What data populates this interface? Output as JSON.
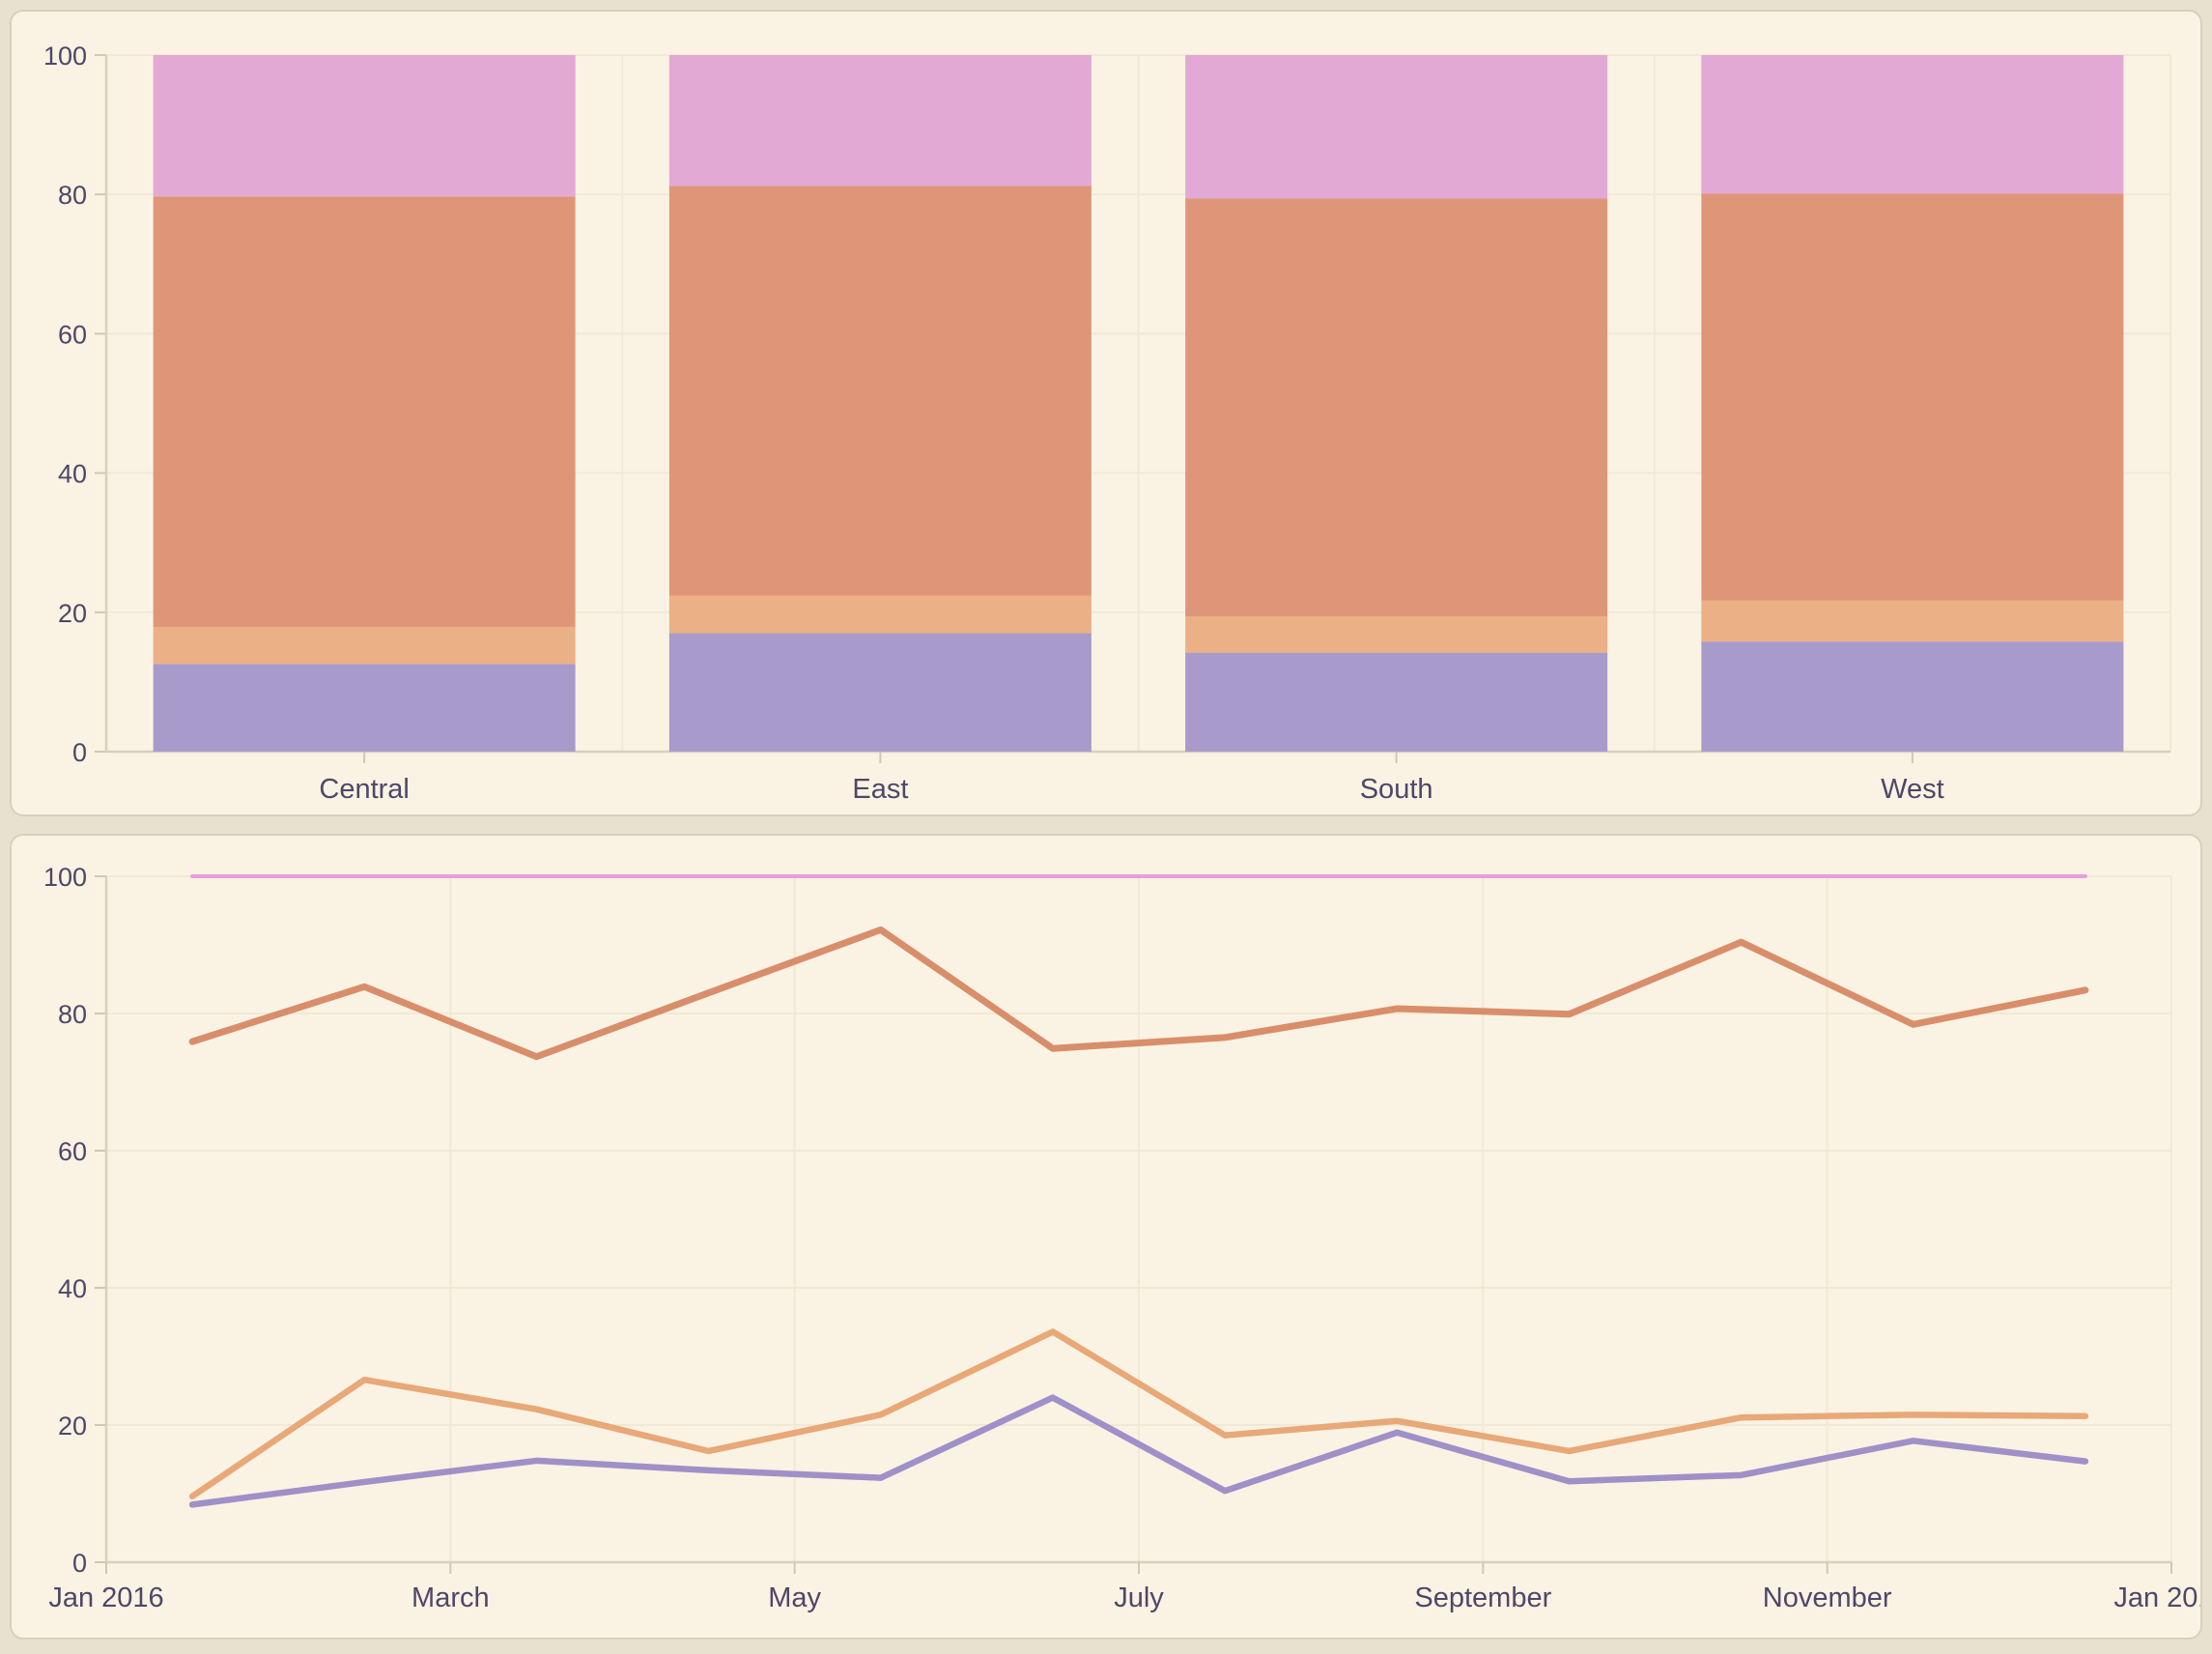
{
  "page": {
    "background_color": "#e9e1d0",
    "card_background_color": "#faf3e3",
    "card_border_color": "#d9d0ba",
    "text_color": "#4e4769",
    "grid_color": "#f1e9d7",
    "axis_color": "#d8d0bb",
    "tick_color": "#cfc8b4"
  },
  "chart_data": [
    {
      "type": "bar",
      "stacked": true,
      "stack_total": 100,
      "title": "",
      "xlabel": "",
      "ylabel": "",
      "legend": "none",
      "grid": "on",
      "ylim": [
        0,
        100
      ],
      "y_ticks": [
        "0",
        "20",
        "40",
        "60",
        "80",
        "100"
      ],
      "y_tick_values": [
        0,
        20,
        40,
        60,
        80,
        100
      ],
      "categories": [
        "Central",
        "East",
        "South",
        "West"
      ],
      "series": [
        {
          "name": "segment-purple",
          "color": "#a89bcb",
          "values": [
            12.6,
            17.0,
            14.2,
            15.8
          ]
        },
        {
          "name": "segment-light-orange",
          "color": "#ebb086",
          "values": [
            5.3,
            5.4,
            5.2,
            5.9
          ]
        },
        {
          "name": "segment-salmon",
          "color": "#df9678",
          "values": [
            61.8,
            58.8,
            60.0,
            58.4
          ]
        },
        {
          "name": "segment-pink",
          "color": "#e3a9d5",
          "values": [
            20.3,
            18.8,
            20.6,
            19.9
          ]
        }
      ]
    },
    {
      "type": "line",
      "title": "",
      "xlabel": "",
      "ylabel": "",
      "legend": "none",
      "grid": "on",
      "ylim": [
        0,
        100
      ],
      "y_ticks": [
        "0",
        "20",
        "40",
        "60",
        "80",
        "100"
      ],
      "y_tick_values": [
        0,
        20,
        40,
        60,
        80,
        100
      ],
      "x_tick_labels": [
        "Jan 2016",
        "March",
        "May",
        "July",
        "September",
        "November",
        "Jan 2017"
      ],
      "x": [
        "Jan 2016",
        "Feb 2016",
        "Mar 2016",
        "Apr 2016",
        "May 2016",
        "Jun 2016",
        "Jul 2016",
        "Aug 2016",
        "Sep 2016",
        "Oct 2016",
        "Nov 2016",
        "Dec 2016"
      ],
      "series": [
        {
          "name": "line-pink",
          "color": "#e79dd7",
          "width": 4,
          "values": [
            100,
            100,
            100,
            100,
            100,
            100,
            100,
            100,
            100,
            100,
            100,
            100
          ]
        },
        {
          "name": "line-salmon",
          "color": "#d98e6b",
          "width": 7,
          "values": [
            75.9,
            83.9,
            73.7,
            83.0,
            92.2,
            74.9,
            76.5,
            80.7,
            79.9,
            90.4,
            78.4,
            83.4
          ]
        },
        {
          "name": "line-light-orange",
          "color": "#e8a878",
          "width": 6.5,
          "values": [
            9.6,
            26.6,
            22.3,
            16.2,
            21.5,
            33.6,
            18.5,
            20.6,
            16.2,
            21.1,
            21.5,
            21.3
          ]
        },
        {
          "name": "line-purple",
          "color": "#a090c8",
          "width": 6.5,
          "values": [
            8.4,
            11.7,
            14.8,
            13.4,
            12.3,
            24.0,
            10.4,
            18.9,
            11.8,
            12.7,
            17.7,
            14.7
          ]
        }
      ]
    }
  ]
}
